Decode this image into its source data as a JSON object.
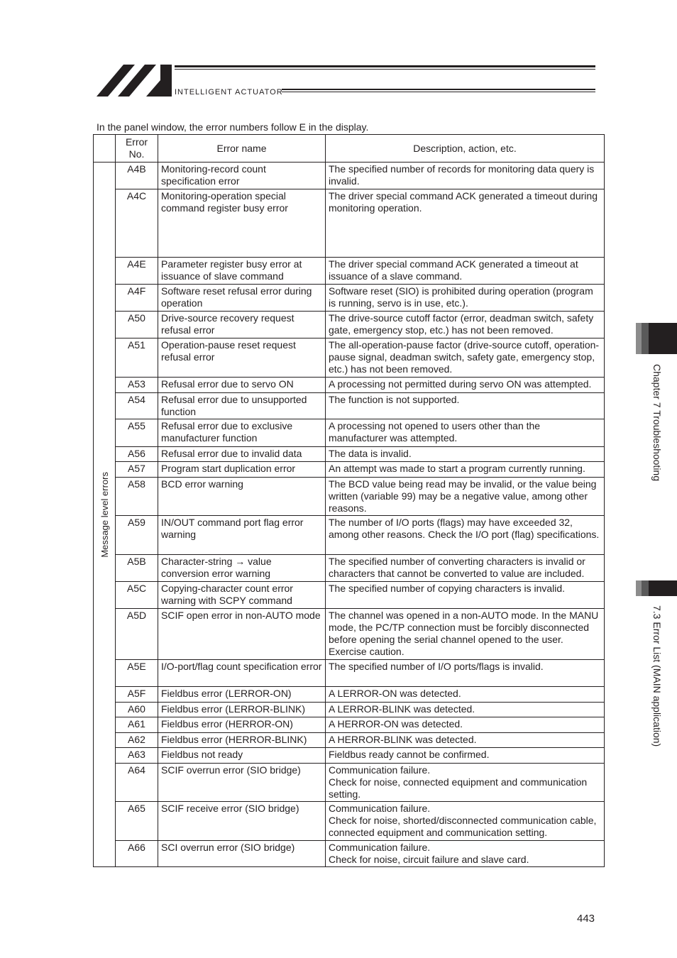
{
  "header": {
    "brand": "INTELLIGENT ACTUATOR",
    "logo": "IAI"
  },
  "intro": "In the panel window, the error numbers follow E in the display.",
  "table": {
    "headers": [
      "Error No.",
      "Error name",
      "Description, action, etc."
    ],
    "group_label": "Message level errors",
    "rows": [
      {
        "no": "A4B",
        "name": "Monitoring-record count specification error",
        "desc": "The specified number of records for monitoring data query is invalid."
      },
      {
        "no": "A4C",
        "name": "Monitoring-operation special command register busy error",
        "desc": "The driver special command ACK generated a timeout during monitoring operation."
      },
      {
        "no": "A4E",
        "name": "Parameter register busy error at issuance of slave command",
        "desc": "The driver special command ACK generated a timeout at issuance of a slave command."
      },
      {
        "no": "A4F",
        "name": "Software reset refusal error during operation",
        "desc": "Software reset (SIO) is prohibited during operation (program is running, servo is in use, etc.)."
      },
      {
        "no": "A50",
        "name": "Drive-source recovery request refusal error",
        "desc": "The drive-source cutoff factor (error, deadman switch, safety gate, emergency stop, etc.) has not been removed."
      },
      {
        "no": "A51",
        "name": "Operation-pause reset request refusal error",
        "desc": "The all-operation-pause factor (drive-source cutoff, operation-pause signal, deadman switch, safety gate, emergency stop, etc.) has not been removed."
      },
      {
        "no": "A53",
        "name": "Refusal error due to servo ON",
        "desc": "A processing not permitted during servo ON was attempted."
      },
      {
        "no": "A54",
        "name": "Refusal error due to unsupported function",
        "desc": "The function is not supported."
      },
      {
        "no": "A55",
        "name": "Refusal error due to exclusive manufacturer function",
        "desc": "A processing not opened to users other than the manufacturer was attempted."
      },
      {
        "no": "A56",
        "name": "Refusal error due to invalid data",
        "desc": "The data is invalid."
      },
      {
        "no": "A57",
        "name": "Program start duplication error",
        "desc": "An attempt was made to start a program currently running."
      },
      {
        "no": "A58",
        "name": "BCD error warning",
        "desc": "The BCD value being read may be invalid, or the value being written (variable 99) may be a negative value, among other reasons."
      },
      {
        "no": "A59",
        "name": "IN/OUT command port flag error warning",
        "desc": "The number of I/O ports (flags) may have exceeded 32, among other reasons. Check the I/O port (flag) specifications."
      },
      {
        "no": "A5B",
        "name": "Character-string → value conversion error warning",
        "desc": "The specified number of converting characters is invalid or characters that cannot be converted to value are included."
      },
      {
        "no": "A5C",
        "name": "Copying-character count error warning with SCPY command",
        "desc": "The specified number of copying characters is invalid."
      },
      {
        "no": "A5D",
        "name": "SCIF open error in non-AUTO mode",
        "desc": "The channel was opened in a non-AUTO mode. In the MANU mode, the PC/TP connection must be forcibly disconnected before opening the serial channel opened to the user. Exercise caution."
      },
      {
        "no": "A5E",
        "name": "I/O-port/flag count specification error",
        "desc": "The specified number of I/O ports/flags is invalid."
      },
      {
        "no": "A5F",
        "name": "Fieldbus error (LERROR-ON)",
        "desc": "A LERROR-ON was detected."
      },
      {
        "no": "A60",
        "name": "Fieldbus error (LERROR-BLINK)",
        "desc": "A LERROR-BLINK was detected."
      },
      {
        "no": "A61",
        "name": "Fieldbus error (HERROR-ON)",
        "desc": "A HERROR-ON was detected."
      },
      {
        "no": "A62",
        "name": "Fieldbus error (HERROR-BLINK)",
        "desc": "A HERROR-BLINK was detected."
      },
      {
        "no": "A63",
        "name": "Fieldbus not ready",
        "desc": "Fieldbus ready cannot be confirmed."
      },
      {
        "no": "A64",
        "name": "SCIF overrun error (SIO bridge)",
        "desc": "Communication failure.\nCheck for noise, connected equipment and communication setting."
      },
      {
        "no": "A65",
        "name": "SCIF receive error (SIO bridge)",
        "desc": "Communication failure.\nCheck for noise, shorted/disconnected communication cable, connected equipment and communication setting."
      },
      {
        "no": "A66",
        "name": "SCI overrun error (SIO bridge)",
        "desc": "Communication failure.\nCheck for noise, circuit failure and slave card."
      }
    ]
  },
  "side": {
    "chapter": "Chapter 7 Troubleshooting",
    "section": "7.3 Error List (MAIN application)"
  },
  "page_number": "443"
}
